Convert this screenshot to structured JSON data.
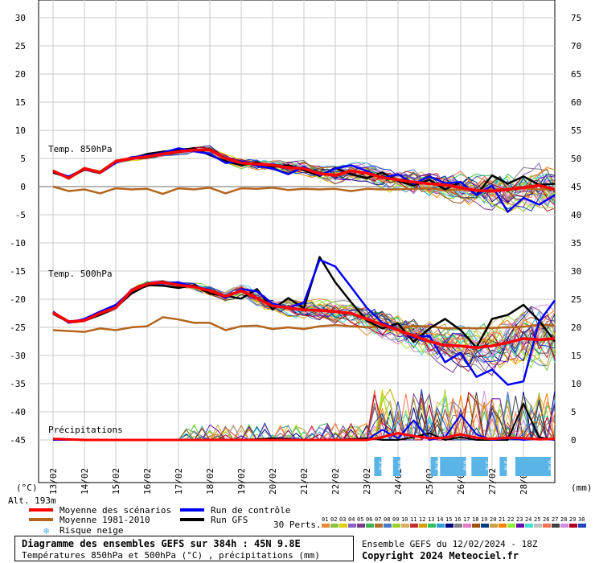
{
  "chart_data": {
    "type": "line",
    "left_axis_unit": "(°C)",
    "right_axis_unit": "(mm)",
    "left_ticks": [
      30,
      25,
      20,
      15,
      10,
      5,
      0,
      -5,
      -10,
      -15,
      -20,
      -25,
      -30,
      -35,
      -40,
      -45
    ],
    "right_ticks": [
      75,
      70,
      65,
      60,
      55,
      50,
      45,
      40,
      35,
      30,
      25,
      20,
      15,
      10,
      5,
      0
    ],
    "ylim": [
      -45,
      30
    ],
    "x_labels": [
      "13/02",
      "14/02",
      "15/02",
      "16/02",
      "17/02",
      "18/02",
      "19/02",
      "20/02",
      "21/02",
      "22/02",
      "23/02",
      "24/02",
      "25/02",
      "26/02",
      "27/02",
      "28/02"
    ],
    "xlim_days": [
      0,
      16
    ],
    "panel_labels": {
      "t850": "Temp. 850hPa",
      "t500": "Temp. 500hPa",
      "precip": "Précipitations"
    },
    "altitude": "Alt. 193m",
    "snow_risk": [
      "3%",
      "6%",
      "6%",
      "6%",
      "10%",
      "6%",
      "6%",
      "6%",
      "6%",
      "6%",
      "3%",
      "3%",
      "6%",
      "3%",
      "6%",
      "3%",
      "6%",
      "3%",
      "6%"
    ],
    "snow_positions": [
      10.6,
      11.2,
      12.4,
      12.7,
      12.85,
      13.0,
      13.15,
      13.3,
      13.7,
      13.85,
      14.0,
      14.6,
      15.1,
      15.25,
      15.4,
      15.55,
      15.7,
      15.85,
      16.0
    ],
    "ensemble_mean_850": [
      [
        0,
        2.8
      ],
      [
        0.5,
        1.5
      ],
      [
        1,
        3.2
      ],
      [
        1.5,
        2.5
      ],
      [
        2,
        4.5
      ],
      [
        2.5,
        5
      ],
      [
        3,
        5.3
      ],
      [
        3.5,
        5.8
      ],
      [
        4,
        6.2
      ],
      [
        4.5,
        6.5
      ],
      [
        5,
        6.5
      ],
      [
        5.5,
        5
      ],
      [
        6,
        4.2
      ],
      [
        6.5,
        4.0
      ],
      [
        7,
        3.8
      ],
      [
        7.5,
        3.4
      ],
      [
        8,
        3.2
      ],
      [
        8.5,
        2.3
      ],
      [
        9,
        2.0
      ],
      [
        9.5,
        2.8
      ],
      [
        10,
        2.4
      ],
      [
        10.5,
        1.6
      ],
      [
        11,
        1.2
      ],
      [
        11.5,
        0.8
      ],
      [
        12,
        0.5
      ],
      [
        12.5,
        0.3
      ],
      [
        13,
        -0.2
      ],
      [
        13.5,
        -0.7
      ],
      [
        14,
        -0.8
      ],
      [
        14.5,
        -0.5
      ],
      [
        15,
        -0.2
      ],
      [
        15.5,
        0.2
      ],
      [
        16,
        -0.5
      ]
    ],
    "clim_850": [
      [
        0,
        0
      ],
      [
        0.5,
        -0.8
      ],
      [
        1,
        -0.5
      ],
      [
        1.5,
        -1.2
      ],
      [
        2,
        -0.3
      ],
      [
        2.5,
        -0.5
      ],
      [
        3,
        -0.4
      ],
      [
        3.5,
        -1.3
      ],
      [
        4,
        -0.3
      ],
      [
        4.5,
        -0.5
      ],
      [
        5,
        -0.2
      ],
      [
        5.5,
        -1.2
      ],
      [
        6,
        -0.3
      ],
      [
        6.5,
        -0.4
      ],
      [
        7,
        -0.2
      ],
      [
        7.5,
        -0.6
      ],
      [
        8,
        -0.4
      ],
      [
        8.5,
        -0.5
      ],
      [
        9,
        -0.4
      ],
      [
        9.5,
        -0.8
      ],
      [
        10,
        -0.4
      ],
      [
        10.5,
        -0.5
      ],
      [
        11,
        -0.5
      ],
      [
        11.5,
        -0.4
      ],
      [
        12,
        -0.3
      ],
      [
        12.5,
        -0.6
      ],
      [
        13,
        -0.5
      ],
      [
        13.5,
        -0.7
      ],
      [
        14,
        -0.4
      ],
      [
        14.5,
        -0.6
      ],
      [
        15,
        -0.3
      ],
      [
        15.5,
        -0.5
      ],
      [
        16,
        -0.5
      ]
    ],
    "control_850": [
      [
        0,
        2.7
      ],
      [
        0.5,
        1.8
      ],
      [
        1,
        3.1
      ],
      [
        1.5,
        2.4
      ],
      [
        2,
        4.2
      ],
      [
        2.5,
        5.2
      ],
      [
        3,
        5.5
      ],
      [
        3.5,
        6.0
      ],
      [
        4,
        6.8
      ],
      [
        4.5,
        6.3
      ],
      [
        5,
        5.8
      ],
      [
        5.5,
        4.2
      ],
      [
        6,
        4.5
      ],
      [
        6.5,
        3.7
      ],
      [
        7,
        3.2
      ],
      [
        7.5,
        2.2
      ],
      [
        8,
        3.5
      ],
      [
        8.5,
        2.0
      ],
      [
        9,
        3.2
      ],
      [
        9.5,
        3.8
      ],
      [
        10,
        2.8
      ],
      [
        10.5,
        1.5
      ],
      [
        11,
        2.2
      ],
      [
        11.5,
        0.5
      ],
      [
        12,
        1.8
      ],
      [
        12.5,
        0.6
      ],
      [
        13,
        0.8
      ],
      [
        13.5,
        -1.5
      ],
      [
        14,
        0.2
      ],
      [
        14.5,
        -4.5
      ],
      [
        15,
        -2.0
      ],
      [
        15.5,
        -3.2
      ],
      [
        16,
        -1.5
      ]
    ],
    "gfs_850": [
      [
        0,
        2.5
      ],
      [
        0.5,
        1.6
      ],
      [
        1,
        3.0
      ],
      [
        1.5,
        2.6
      ],
      [
        2,
        4.5
      ],
      [
        2.5,
        5.0
      ],
      [
        3,
        5.8
      ],
      [
        3.5,
        6.2
      ],
      [
        4,
        6.5
      ],
      [
        4.5,
        6.8
      ],
      [
        5,
        5.6
      ],
      [
        5.5,
        4.5
      ],
      [
        6,
        3.8
      ],
      [
        6.5,
        4.3
      ],
      [
        7,
        3.5
      ],
      [
        7.5,
        3.8
      ],
      [
        8,
        2.9
      ],
      [
        8.5,
        1.9
      ],
      [
        9,
        3.3
      ],
      [
        9.5,
        2.2
      ],
      [
        10,
        1.5
      ],
      [
        10.5,
        2.5
      ],
      [
        11,
        1.0
      ],
      [
        11.5,
        0.2
      ],
      [
        12,
        1.2
      ],
      [
        12.5,
        -0.5
      ],
      [
        13,
        0.8
      ],
      [
        13.5,
        -1.5
      ],
      [
        14,
        2.0
      ],
      [
        14.5,
        0.5
      ],
      [
        15,
        1.8
      ],
      [
        15.5,
        0.3
      ],
      [
        16,
        0.5
      ]
    ],
    "ensemble_mean_500": [
      [
        0,
        -22.4
      ],
      [
        0.5,
        -24.0
      ],
      [
        1,
        -23.8
      ],
      [
        1.5,
        -22.5
      ],
      [
        2,
        -21.5
      ],
      [
        2.5,
        -18.5
      ],
      [
        3,
        -17.3
      ],
      [
        3.5,
        -17.0
      ],
      [
        4,
        -17.5
      ],
      [
        4.5,
        -17.8
      ],
      [
        5,
        -18.5
      ],
      [
        5.5,
        -19.5
      ],
      [
        6,
        -18.5
      ],
      [
        6.5,
        -19.8
      ],
      [
        7,
        -21.2
      ],
      [
        7.5,
        -21.5
      ],
      [
        8,
        -21.9
      ],
      [
        8.5,
        -22.0
      ],
      [
        9,
        -22.2
      ],
      [
        9.5,
        -22.5
      ],
      [
        10,
        -23.5
      ],
      [
        10.5,
        -24.5
      ],
      [
        11,
        -25.5
      ],
      [
        11.5,
        -26.5
      ],
      [
        12,
        -27.5
      ],
      [
        12.5,
        -28.2
      ],
      [
        13,
        -28.3
      ],
      [
        13.5,
        -28.6
      ],
      [
        14,
        -28.3
      ],
      [
        14.5,
        -27.7
      ],
      [
        15,
        -27.0
      ],
      [
        15.5,
        -27.2
      ],
      [
        16,
        -27.0
      ]
    ],
    "clim_500": [
      [
        0,
        -25.5
      ],
      [
        1,
        -25.8
      ],
      [
        1.5,
        -25.2
      ],
      [
        2,
        -25.5
      ],
      [
        2.5,
        -25.0
      ],
      [
        3,
        -24.8
      ],
      [
        3.5,
        -23.2
      ],
      [
        4,
        -23.6
      ],
      [
        4.5,
        -24.2
      ],
      [
        5,
        -24.2
      ],
      [
        5.5,
        -25.5
      ],
      [
        6,
        -24.8
      ],
      [
        6.5,
        -24.7
      ],
      [
        7,
        -25.3
      ],
      [
        7.5,
        -25.0
      ],
      [
        8,
        -25.3
      ],
      [
        8.5,
        -24.8
      ],
      [
        9,
        -24.6
      ],
      [
        9.5,
        -24.8
      ],
      [
        10,
        -25.0
      ],
      [
        10.5,
        -24.8
      ],
      [
        11,
        -25.2
      ],
      [
        11.5,
        -24.8
      ],
      [
        12,
        -24.8
      ],
      [
        12.5,
        -25.2
      ],
      [
        13,
        -25.1
      ],
      [
        13.5,
        -25.2
      ],
      [
        14,
        -25.1
      ],
      [
        14.5,
        -25.0
      ],
      [
        15,
        -24.9
      ],
      [
        15.5,
        -24.5
      ],
      [
        16,
        -24.7
      ]
    ],
    "control_500": [
      [
        0,
        -22.2
      ],
      [
        0.5,
        -24.2
      ],
      [
        1,
        -23.5
      ],
      [
        1.5,
        -22.2
      ],
      [
        2,
        -21.0
      ],
      [
        2.5,
        -18.5
      ],
      [
        3,
        -17.2
      ],
      [
        3.5,
        -17.2
      ],
      [
        4,
        -17.0
      ],
      [
        4.5,
        -17.8
      ],
      [
        5,
        -18.3
      ],
      [
        5.5,
        -19.8
      ],
      [
        6,
        -18.2
      ],
      [
        6.5,
        -18.6
      ],
      [
        7,
        -20.8
      ],
      [
        7.5,
        -21.5
      ],
      [
        8,
        -20.6
      ],
      [
        8.5,
        -13.0
      ],
      [
        9,
        -14.2
      ],
      [
        9.5,
        -17.8
      ],
      [
        10,
        -21.5
      ],
      [
        10.5,
        -24.2
      ],
      [
        11,
        -25.4
      ],
      [
        11.5,
        -26.8
      ],
      [
        12,
        -26.5
      ],
      [
        12.5,
        -31.2
      ],
      [
        13,
        -29.5
      ],
      [
        13.5,
        -33.8
      ],
      [
        14,
        -32.5
      ],
      [
        14.5,
        -35.2
      ],
      [
        15,
        -34.6
      ],
      [
        15.5,
        -24.0
      ],
      [
        16,
        -20.2
      ]
    ],
    "gfs_500": [
      [
        0,
        -22.6
      ],
      [
        0.5,
        -24.1
      ],
      [
        1,
        -23.8
      ],
      [
        1.5,
        -22.8
      ],
      [
        2,
        -21.5
      ],
      [
        2.5,
        -19.0
      ],
      [
        3,
        -17.5
      ],
      [
        3.5,
        -17.6
      ],
      [
        4,
        -18.0
      ],
      [
        4.5,
        -17.5
      ],
      [
        5,
        -19.0
      ],
      [
        5.5,
        -19.4
      ],
      [
        6,
        -19.9
      ],
      [
        6.5,
        -18.2
      ],
      [
        7,
        -21.8
      ],
      [
        7.5,
        -19.8
      ],
      [
        8,
        -21.6
      ],
      [
        8.5,
        -12.5
      ],
      [
        9,
        -17.0
      ],
      [
        9.5,
        -20.5
      ],
      [
        10,
        -23.8
      ],
      [
        10.5,
        -25.2
      ],
      [
        11,
        -24.3
      ],
      [
        11.5,
        -27.6
      ],
      [
        12,
        -25.2
      ],
      [
        12.5,
        -23.5
      ],
      [
        13,
        -25.5
      ],
      [
        13.5,
        -28.6
      ],
      [
        14,
        -23.5
      ],
      [
        14.5,
        -22.8
      ],
      [
        15,
        -21.0
      ],
      [
        15.5,
        -23.8
      ],
      [
        16,
        -27.5
      ]
    ],
    "ensemble_mean_precip_mm": [
      [
        0,
        0.2
      ],
      [
        1,
        0
      ],
      [
        2,
        0
      ],
      [
        3,
        0
      ],
      [
        4,
        0
      ],
      [
        5,
        0
      ],
      [
        6,
        0
      ],
      [
        7,
        0
      ],
      [
        8,
        0
      ],
      [
        9,
        0
      ],
      [
        10,
        0
      ],
      [
        10.5,
        0.5
      ],
      [
        11,
        1.2
      ],
      [
        11.5,
        0.7
      ],
      [
        12,
        0.3
      ],
      [
        12.5,
        0.4
      ],
      [
        13,
        1.0
      ],
      [
        13.5,
        0.4
      ],
      [
        14,
        0.2
      ],
      [
        14.5,
        0.4
      ],
      [
        15,
        0.3
      ],
      [
        15.5,
        0.1
      ],
      [
        16,
        0.2
      ]
    ],
    "control_precip_mm": [
      [
        0,
        0
      ],
      [
        6,
        0
      ],
      [
        7,
        0
      ],
      [
        8,
        0
      ],
      [
        9,
        0
      ],
      [
        10,
        0
      ],
      [
        10.5,
        1.8
      ],
      [
        11,
        0.3
      ],
      [
        11.5,
        3.5
      ],
      [
        12,
        0
      ],
      [
        12.5,
        0.5
      ],
      [
        13,
        4.5
      ],
      [
        13.5,
        1.0
      ],
      [
        14,
        0
      ],
      [
        14.5,
        0.3
      ],
      [
        15,
        0
      ],
      [
        15.5,
        0.2
      ],
      [
        16,
        0
      ]
    ],
    "gfs_precip_mm": [
      [
        0,
        0
      ],
      [
        6,
        0
      ],
      [
        7,
        0.3
      ],
      [
        8,
        0
      ],
      [
        9,
        0
      ],
      [
        10,
        0.3
      ],
      [
        10.5,
        0
      ],
      [
        11,
        0
      ],
      [
        11.5,
        0.5
      ],
      [
        12,
        1.2
      ],
      [
        12.5,
        0
      ],
      [
        13,
        0.5
      ],
      [
        13.5,
        0
      ],
      [
        14,
        0
      ],
      [
        14.5,
        0
      ],
      [
        15,
        6.5
      ],
      [
        15.5,
        0.5
      ],
      [
        16,
        0
      ]
    ],
    "perturbations_count": 30
  },
  "legend": {
    "mean": "Moyenne des scénarios",
    "control": "Run de contrôle",
    "climate": "Moyenne 1981-2010",
    "gfs": "Run GFS",
    "snow": "Risque neige",
    "perts": "30 Perts.",
    "perts_numbers": [
      "01",
      "02",
      "03",
      "04",
      "05",
      "06",
      "07",
      "08",
      "09",
      "10",
      "11",
      "12",
      "13",
      "14",
      "15",
      "16",
      "17",
      "18",
      "19",
      "20",
      "21",
      "22",
      "23",
      "24",
      "25",
      "26",
      "27",
      "28",
      "29",
      "30"
    ],
    "perts_colors": [
      "#e8893a",
      "#8cc63f",
      "#e0d000",
      "#8a62c9",
      "#7a3a8c",
      "#3cb44b",
      "#b07030",
      "#4a7ac8",
      "#a0d030",
      "#d8b060",
      "#c03030",
      "#d0a000",
      "#30c060",
      "#30a0d8",
      "#000080",
      "#808080",
      "#e87ac0",
      "#a05010",
      "#003c80",
      "#c8a040",
      "#ff8000",
      "#90ee30",
      "#6a0dad",
      "#40e0d0",
      "#c0c0c0",
      "#ff7050",
      "#404040",
      "#d090e0",
      "#b00020",
      "#2040c0"
    ]
  },
  "colors": {
    "mean": "#ff0000",
    "control": "#0000ff",
    "climate": "#b5651d",
    "gfs": "#000000"
  },
  "footer": {
    "title": "Diagramme des ensembles GEFS sur 384h : 45N 9.8E",
    "subtitle": "Températures 850hPa et 500hPa (°C) , précipitations (mm)",
    "run": "Ensemble GEFS du 12/02/2024 - 18Z",
    "copyright": "Copyright 2024 Meteociel.fr"
  }
}
